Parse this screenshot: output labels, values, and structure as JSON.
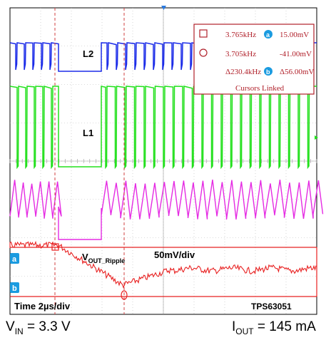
{
  "chart_data": {
    "type": "line",
    "title": "",
    "instrument": "oscilloscope",
    "grid": true,
    "horizontal_divisions": 10,
    "vertical_divisions": 8,
    "series": [
      {
        "name": "L2",
        "color": "#1b2be8",
        "shape": "switching node with burst gap (flat mid-level during pause)"
      },
      {
        "name": "L1",
        "color": "#22e01c",
        "shape": "switching node with burst gap (flat low-level during pause)"
      },
      {
        "name": "",
        "color": "#e52be3",
        "shape": "inductor current ramps, sawtooth during switching"
      },
      {
        "name": "V_OUT_Ripple",
        "color": "#e82020",
        "shape": "output voltage ripple: drops during pause then recovers"
      }
    ],
    "scales": {
      "time": "Time 2µs/div",
      "ripple": "50mV/div"
    },
    "part_label": "TPS63051",
    "cursors": {
      "t1": "3.765kHz",
      "t2": "3.705kHz",
      "dt": "Δ230.4kHz",
      "a": "15.00mV",
      "b": "-41.00mV",
      "dv": "Δ56.00mV",
      "status": "Cursors Linked",
      "marker_a": "a",
      "marker_b": "b"
    },
    "captions": {
      "vin_main": "V",
      "vin_sub": "IN",
      "vin_value": " = 3.3 V",
      "iout_main": "I",
      "iout_sub": "OUT",
      "iout_value": " = 145 mA"
    }
  },
  "labels": {
    "l2": "L2",
    "l1": "L1",
    "vout_main": "V",
    "vout_sub": "OUT_Ripple",
    "vout_scale": "50mV/div",
    "time_scale": "Time 2µs/div",
    "part": "TPS63051"
  },
  "colors": {
    "ch_blue": "#1b2be8",
    "ch_green": "#22e01c",
    "ch_magenta": "#e52be3",
    "ch_red": "#e82020",
    "cursor_red": "#b0202a",
    "marker_cyan": "#1a9be0"
  }
}
